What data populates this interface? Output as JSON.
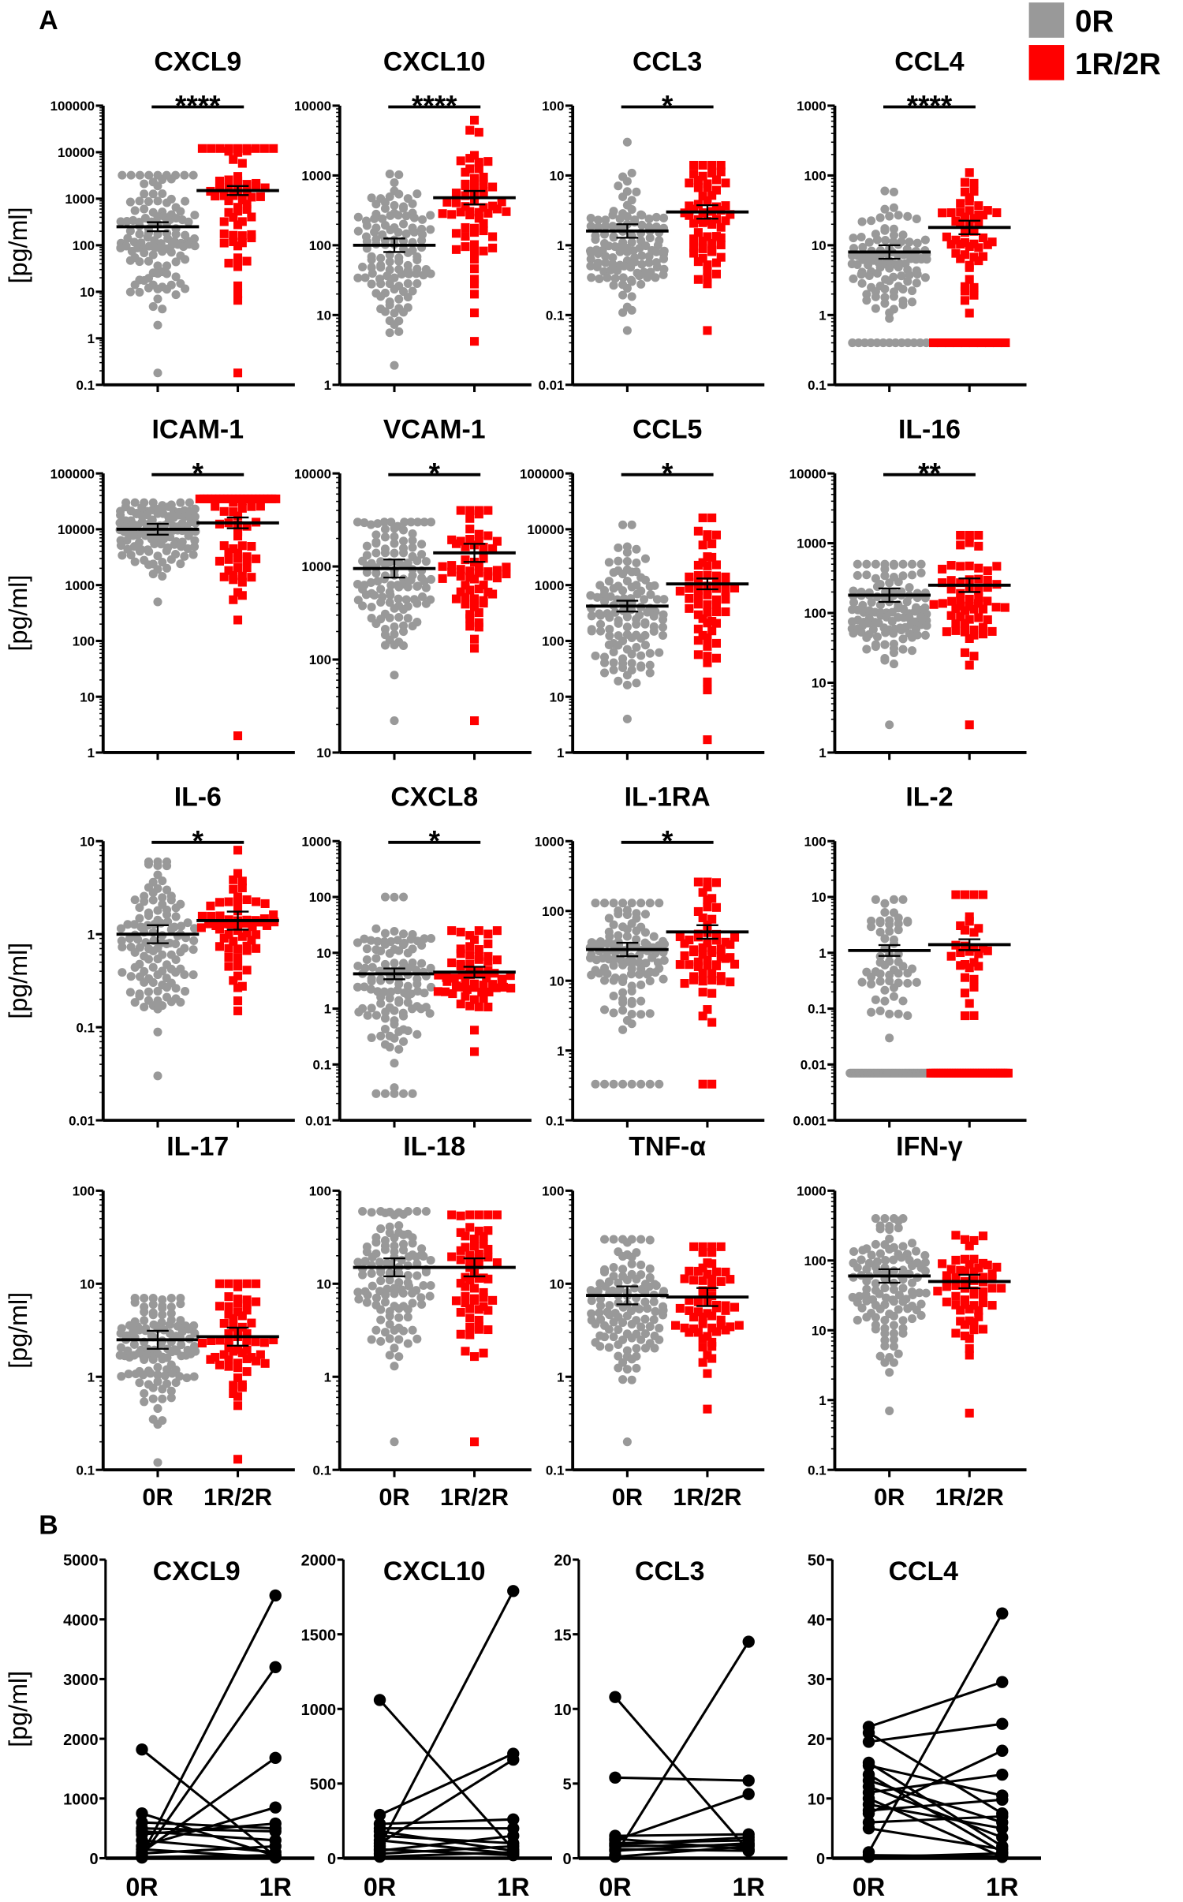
{
  "panel_labels": {
    "a": "A",
    "b": "B"
  },
  "legend": [
    {
      "label": "0R",
      "color": "#999999",
      "shape": "circle"
    },
    {
      "label": "1R/2R",
      "color": "#ff0000",
      "shape": "square"
    }
  ],
  "y_label": "[pg/ml]",
  "x_labels_a": [
    "0R",
    "1R/2R"
  ],
  "x_labels_b": [
    "0R",
    "1R"
  ],
  "chart_data": [
    {
      "panel": "A",
      "type": "scatter",
      "title": "CXCL9",
      "significance": "****",
      "yscale": "log",
      "ylim": [
        0.1,
        100000
      ],
      "tick_labels": [
        "0.1",
        "1",
        "10",
        "100",
        "1000",
        "10000",
        "100000"
      ],
      "groups": [
        {
          "name": "0R",
          "mean": 250,
          "min": 0.18,
          "max": 3200,
          "n": 120,
          "floor_value": null,
          "floor_n": 0
        },
        {
          "name": "1R/2R",
          "mean": 1500,
          "min": 0.18,
          "max": 12000,
          "n": 62,
          "floor_value": null,
          "floor_n": 0
        }
      ]
    },
    {
      "panel": "A",
      "type": "scatter",
      "title": "CXCL10",
      "significance": "****",
      "yscale": "log",
      "ylim": [
        1,
        10000
      ],
      "tick_labels": [
        "1",
        "10",
        "100",
        "1000",
        "10000"
      ],
      "groups": [
        {
          "name": "0R",
          "mean": 100,
          "min": 1.9,
          "max": 1050,
          "n": 120,
          "floor_value": null,
          "floor_n": 0
        },
        {
          "name": "1R/2R",
          "mean": 480,
          "min": 4.2,
          "max": 6200,
          "n": 62,
          "floor_value": null,
          "floor_n": 0
        }
      ]
    },
    {
      "panel": "A",
      "type": "scatter",
      "title": "CCL3",
      "significance": "*",
      "yscale": "log",
      "ylim": [
        0.01,
        100
      ],
      "tick_labels": [
        "0.01",
        "0.1",
        "1",
        "10",
        "100"
      ],
      "groups": [
        {
          "name": "0R",
          "mean": 1.6,
          "min": 0.06,
          "max": 30,
          "n": 120,
          "floor_value": null,
          "floor_n": 0
        },
        {
          "name": "1R/2R",
          "mean": 3.0,
          "min": 0.06,
          "max": 14,
          "n": 62,
          "floor_value": null,
          "floor_n": 0
        }
      ]
    },
    {
      "panel": "A",
      "type": "scatter",
      "title": "CCL4",
      "significance": "****",
      "yscale": "log",
      "ylim": [
        0.1,
        1000
      ],
      "tick_labels": [
        "0.1",
        "1",
        "10",
        "100",
        "1000"
      ],
      "groups": [
        {
          "name": "0R",
          "mean": 8,
          "min": 0.4,
          "max": 60,
          "n": 120,
          "floor_value": 0.4,
          "floor_n": 12
        },
        {
          "name": "1R/2R",
          "mean": 18,
          "min": 0.4,
          "max": 110,
          "n": 62,
          "floor_value": 0.4,
          "floor_n": 9
        }
      ]
    },
    {
      "panel": "A",
      "type": "scatter",
      "title": "ICAM-1",
      "significance": "*",
      "yscale": "log",
      "ylim": [
        1,
        100000
      ],
      "tick_labels": [
        "1",
        "10",
        "100",
        "1000",
        "10000",
        "100000"
      ],
      "groups": [
        {
          "name": "0R",
          "mean": 10000,
          "min": 500,
          "max": 30000,
          "n": 120,
          "floor_value": null,
          "floor_n": 0
        },
        {
          "name": "1R/2R",
          "mean": 13000,
          "min": 2,
          "max": 35000,
          "n": 62,
          "floor_value": null,
          "floor_n": 0
        }
      ]
    },
    {
      "panel": "A",
      "type": "scatter",
      "title": "VCAM-1",
      "significance": "*",
      "yscale": "log",
      "ylim": [
        10,
        10000
      ],
      "tick_labels": [
        "10",
        "100",
        "1000",
        "10000"
      ],
      "groups": [
        {
          "name": "0R",
          "mean": 950,
          "min": 22,
          "max": 3000,
          "n": 120,
          "floor_value": null,
          "floor_n": 0
        },
        {
          "name": "1R/2R",
          "mean": 1400,
          "min": 22,
          "max": 4000,
          "n": 62,
          "floor_value": null,
          "floor_n": 0
        }
      ]
    },
    {
      "panel": "A",
      "type": "scatter",
      "title": "CCL5",
      "significance": "*",
      "yscale": "log",
      "ylim": [
        1,
        100000
      ],
      "tick_labels": [
        "1",
        "10",
        "100",
        "1000",
        "10000",
        "100000"
      ],
      "groups": [
        {
          "name": "0R",
          "mean": 420,
          "min": 4,
          "max": 12000,
          "n": 120,
          "floor_value": null,
          "floor_n": 0
        },
        {
          "name": "1R/2R",
          "mean": 1050,
          "min": 1.7,
          "max": 16000,
          "n": 62,
          "floor_value": null,
          "floor_n": 0
        }
      ]
    },
    {
      "panel": "A",
      "type": "scatter",
      "title": "IL-16",
      "significance": "**",
      "yscale": "log",
      "ylim": [
        1,
        10000
      ],
      "tick_labels": [
        "1",
        "10",
        "100",
        "1000",
        "10000"
      ],
      "groups": [
        {
          "name": "0R",
          "mean": 180,
          "min": 2.5,
          "max": 500,
          "n": 120,
          "floor_value": null,
          "floor_n": 0
        },
        {
          "name": "1R/2R",
          "mean": 250,
          "min": 2.5,
          "max": 1300,
          "n": 62,
          "floor_value": null,
          "floor_n": 0
        }
      ]
    },
    {
      "panel": "A",
      "type": "scatter",
      "title": "IL-6",
      "significance": "*",
      "yscale": "log",
      "ylim": [
        0.01,
        10
      ],
      "tick_labels": [
        "0.01",
        "0.1",
        "1",
        "10"
      ],
      "groups": [
        {
          "name": "0R",
          "mean": 1.0,
          "min": 0.03,
          "max": 6,
          "n": 120,
          "floor_value": null,
          "floor_n": 0
        },
        {
          "name": "1R/2R",
          "mean": 1.4,
          "min": 0.15,
          "max": 8,
          "n": 62,
          "floor_value": null,
          "floor_n": 0
        }
      ]
    },
    {
      "panel": "A",
      "type": "scatter",
      "title": "CXCL8",
      "significance": "*",
      "yscale": "log",
      "ylim": [
        0.01,
        1000
      ],
      "tick_labels": [
        "0.01",
        "0.1",
        "1",
        "10",
        "100",
        "1000"
      ],
      "groups": [
        {
          "name": "0R",
          "mean": 4.2,
          "min": 0.03,
          "max": 100,
          "n": 120,
          "floor_value": 0.03,
          "floor_n": 4
        },
        {
          "name": "1R/2R",
          "mean": 4.5,
          "min": 0.17,
          "max": 25,
          "n": 62,
          "floor_value": null,
          "floor_n": 0
        }
      ]
    },
    {
      "panel": "A",
      "type": "scatter",
      "title": "IL-1RA",
      "significance": "*",
      "yscale": "log",
      "ylim": [
        0.1,
        1000
      ],
      "tick_labels": [
        "0.1",
        "1",
        "10",
        "100",
        "1000"
      ],
      "groups": [
        {
          "name": "0R",
          "mean": 28,
          "min": 0.33,
          "max": 130,
          "n": 120,
          "floor_value": 0.33,
          "floor_n": 7
        },
        {
          "name": "1R/2R",
          "mean": 50,
          "min": 0.33,
          "max": 260,
          "n": 62,
          "floor_value": 0.33,
          "floor_n": 1
        }
      ]
    },
    {
      "panel": "A",
      "type": "scatter",
      "title": "IL-2",
      "significance": "",
      "yscale": "log",
      "ylim": [
        0.001,
        100
      ],
      "tick_labels": [
        "0.001",
        "0.01",
        "0.1",
        "1",
        "10",
        "100"
      ],
      "groups": [
        {
          "name": "0R",
          "mean": 1.1,
          "min": 0.007,
          "max": 9,
          "n": 120,
          "floor_value": 0.007,
          "floor_n": 60
        },
        {
          "name": "1R/2R",
          "mean": 1.4,
          "min": 0.007,
          "max": 11,
          "n": 62,
          "floor_value": 0.007,
          "floor_n": 30
        }
      ]
    },
    {
      "panel": "A",
      "type": "scatter",
      "title": "IL-17",
      "significance": "",
      "yscale": "log",
      "ylim": [
        0.1,
        100
      ],
      "tick_labels": [
        "0.1",
        "1",
        "10",
        "100"
      ],
      "groups": [
        {
          "name": "0R",
          "mean": 2.5,
          "min": 0.12,
          "max": 7,
          "n": 120,
          "floor_value": null,
          "floor_n": 0
        },
        {
          "name": "1R/2R",
          "mean": 2.7,
          "min": 0.13,
          "max": 10,
          "n": 62,
          "floor_value": null,
          "floor_n": 0
        }
      ]
    },
    {
      "panel": "A",
      "type": "scatter",
      "title": "IL-18",
      "significance": "",
      "yscale": "log",
      "ylim": [
        0.1,
        100
      ],
      "tick_labels": [
        "0.1",
        "1",
        "10",
        "100"
      ],
      "groups": [
        {
          "name": "0R",
          "mean": 15,
          "min": 0.2,
          "max": 60,
          "n": 120,
          "floor_value": null,
          "floor_n": 0
        },
        {
          "name": "1R/2R",
          "mean": 15,
          "min": 0.2,
          "max": 55,
          "n": 62,
          "floor_value": null,
          "floor_n": 0
        }
      ]
    },
    {
      "panel": "A",
      "type": "scatter",
      "title": "TNF-α",
      "significance": "",
      "yscale": "log",
      "ylim": [
        0.1,
        100
      ],
      "tick_labels": [
        "0.1",
        "1",
        "10",
        "100"
      ],
      "groups": [
        {
          "name": "0R",
          "mean": 7.5,
          "min": 0.2,
          "max": 30,
          "n": 120,
          "floor_value": null,
          "floor_n": 0
        },
        {
          "name": "1R/2R",
          "mean": 7.2,
          "min": 0.45,
          "max": 25,
          "n": 62,
          "floor_value": null,
          "floor_n": 0
        }
      ]
    },
    {
      "panel": "A",
      "type": "scatter",
      "title": "IFN-γ",
      "significance": "",
      "yscale": "log",
      "ylim": [
        0.1,
        1000
      ],
      "tick_labels": [
        "0.1",
        "1",
        "10",
        "100",
        "1000"
      ],
      "groups": [
        {
          "name": "0R",
          "mean": 60,
          "min": 0.7,
          "max": 400,
          "n": 120,
          "floor_value": null,
          "floor_n": 0
        },
        {
          "name": "1R/2R",
          "mean": 50,
          "min": 0.65,
          "max": 230,
          "n": 62,
          "floor_value": null,
          "floor_n": 0
        }
      ]
    },
    {
      "panel": "B",
      "type": "line",
      "title": "CXCL9",
      "ylim": [
        0,
        5000
      ],
      "tick_labels": [
        "0",
        "1000",
        "2000",
        "3000",
        "4000",
        "5000"
      ],
      "pairs": [
        [
          1820,
          30
        ],
        [
          50,
          4400
        ],
        [
          30,
          3200
        ],
        [
          100,
          1680
        ],
        [
          750,
          40
        ],
        [
          600,
          500
        ],
        [
          400,
          580
        ],
        [
          200,
          850
        ],
        [
          450,
          300
        ],
        [
          80,
          200
        ],
        [
          20,
          50
        ],
        [
          300,
          100
        ],
        [
          10,
          20
        ],
        [
          500,
          450
        ],
        [
          150,
          10
        ]
      ]
    },
    {
      "panel": "B",
      "type": "line",
      "title": "CXCL10",
      "ylim": [
        0,
        2000
      ],
      "tick_labels": [
        "0",
        "500",
        "1000",
        "1500",
        "2000"
      ],
      "pairs": [
        [
          1060,
          60
        ],
        [
          80,
          1790
        ],
        [
          290,
          700
        ],
        [
          100,
          660
        ],
        [
          230,
          260
        ],
        [
          150,
          100
        ],
        [
          200,
          200
        ],
        [
          50,
          150
        ],
        [
          120,
          30
        ],
        [
          30,
          80
        ],
        [
          10,
          40
        ],
        [
          60,
          20
        ],
        [
          180,
          50
        ]
      ]
    },
    {
      "panel": "B",
      "type": "line",
      "title": "CCL3",
      "ylim": [
        0,
        20
      ],
      "tick_labels": [
        "0",
        "5",
        "10",
        "15",
        "20"
      ],
      "pairs": [
        [
          10.8,
          0.5
        ],
        [
          0.2,
          14.5
        ],
        [
          5.4,
          5.2
        ],
        [
          1.2,
          4.3
        ],
        [
          1.5,
          1.6
        ],
        [
          1,
          1.2
        ],
        [
          0.8,
          0.9
        ],
        [
          1.3,
          0.6
        ],
        [
          0.5,
          1.0
        ],
        [
          0.1,
          0.8
        ],
        [
          0.9,
          1.4
        ],
        [
          0.6,
          0.5
        ]
      ]
    },
    {
      "panel": "B",
      "type": "line",
      "title": "CCL4",
      "ylim": [
        0,
        50
      ],
      "tick_labels": [
        "0",
        "10",
        "20",
        "30",
        "40",
        "50"
      ],
      "pairs": [
        [
          1,
          41
        ],
        [
          22,
          29.5
        ],
        [
          19.5,
          22.5
        ],
        [
          7.5,
          18
        ],
        [
          11,
          14
        ],
        [
          15.5,
          10.5
        ],
        [
          8,
          9.8
        ],
        [
          21,
          7.5
        ],
        [
          13,
          6
        ],
        [
          9,
          5
        ],
        [
          6,
          7
        ],
        [
          12,
          3.5
        ],
        [
          14,
          1
        ],
        [
          0.5,
          0.3
        ],
        [
          0.2,
          0.8
        ],
        [
          5,
          1.5
        ],
        [
          10,
          0.2
        ],
        [
          16,
          2
        ]
      ]
    }
  ]
}
